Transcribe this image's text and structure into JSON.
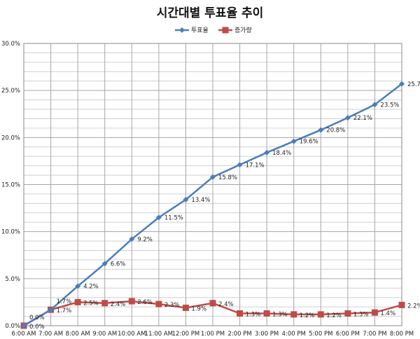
{
  "chart_data": {
    "type": "line",
    "title": "시간대별 투표율 추이",
    "categories": [
      "6:00 AM",
      "7:00 AM",
      "8:00 AM",
      "9:00 AM",
      "10:00 AM",
      "11:00 AM",
      "12:00 PM",
      "1:00 PM",
      "2:00 PM",
      "3:00 PM",
      "4:00 PM",
      "5:00 PM",
      "6:00 PM",
      "7:00 PM",
      "8:00 PM"
    ],
    "ylim": [
      0,
      30
    ],
    "y_ticks": [
      "0.0%",
      "5.0%",
      "10.0%",
      "15.0%",
      "20.0%",
      "25.0%",
      "30.0%"
    ],
    "grid": true,
    "legend": "top",
    "series": [
      {
        "name": "투표율",
        "color": "#4A7EBB",
        "marker": "diamond",
        "values": [
          0,
          1.7,
          4.2,
          6.6,
          9.2,
          11.5,
          13.4,
          15.8,
          17.1,
          18.4,
          19.6,
          20.8,
          22.1,
          23.5,
          25.7
        ],
        "labels": [
          "0.0%",
          "1.7%",
          "4.2%",
          "6.6%",
          "9.2%",
          "11.5%",
          "13.4%",
          "15.8%",
          "17.1%",
          "18.4%",
          "19.6%",
          "20.8%",
          "22.1%",
          "23.5%",
          "25.7%"
        ]
      },
      {
        "name": "증가량",
        "color": "#BE4B48",
        "marker": "square",
        "values": [
          0,
          1.7,
          2.5,
          2.4,
          2.6,
          2.3,
          1.9,
          2.4,
          1.3,
          1.3,
          1.2,
          1.2,
          1.3,
          1.4,
          2.2
        ],
        "labels": [
          "0.0%",
          "1.7%",
          "2.5%",
          "2.4%",
          "2.6%",
          "2.3%",
          "1.9%",
          "2.4%",
          "1.3%",
          "1.3%",
          "1.2%",
          "1.2%",
          "1.3%",
          "1.4%",
          "2.2%"
        ]
      }
    ]
  }
}
